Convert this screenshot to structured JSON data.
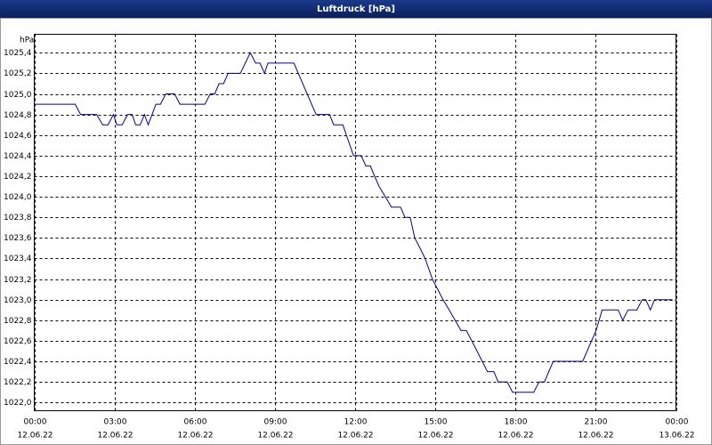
{
  "chart_data": {
    "type": "line",
    "title": "Luftdruck [hPa]",
    "y_unit": "hPa",
    "x": [
      0,
      1.53,
      1.73,
      2.33,
      2.56,
      2.76,
      2.96,
      3.09,
      3.29,
      3.49,
      3.66,
      3.79,
      3.96,
      4.12,
      4.26,
      4.55,
      4.72,
      4.92,
      5.25,
      5.45,
      6.38,
      6.58,
      6.75,
      6.91,
      7.08,
      7.25,
      7.71,
      8.08,
      8.28,
      8.44,
      8.61,
      8.74,
      9.71,
      10.54,
      11.04,
      11.2,
      11.54,
      11.94,
      12.23,
      12.4,
      12.57,
      12.73,
      12.9,
      13.36,
      13.7,
      13.86,
      14.06,
      14.23,
      14.43,
      14.62,
      14.89,
      15.09,
      15.29,
      15.52,
      15.96,
      16.16,
      16.36,
      16.56,
      16.95,
      17.19,
      17.35,
      17.69,
      17.89,
      18.68,
      18.88,
      19.08,
      19.41,
      20.51,
      21.01,
      21.24,
      21.84,
      22.01,
      22.21,
      22.54,
      22.74,
      22.87,
      23.04,
      23.2,
      23.87
    ],
    "series": [
      {
        "name": "Luftdruck",
        "color": "#0000a0",
        "values": [
          1024.9,
          1024.9,
          1024.8,
          1024.8,
          1024.7,
          1024.7,
          1024.8,
          1024.7,
          1024.7,
          1024.8,
          1024.8,
          1024.7,
          1024.7,
          1024.8,
          1024.7,
          1024.9,
          1024.9,
          1025.0,
          1025.0,
          1024.9,
          1024.9,
          1025.0,
          1025.0,
          1025.1,
          1025.1,
          1025.2,
          1025.2,
          1025.4,
          1025.3,
          1025.3,
          1025.2,
          1025.3,
          1025.3,
          1024.8,
          1024.8,
          1024.7,
          1024.7,
          1024.4,
          1024.4,
          1024.3,
          1024.3,
          1024.2,
          1024.1,
          1023.9,
          1023.9,
          1023.8,
          1023.8,
          1023.6,
          1023.5,
          1023.4,
          1023.2,
          1023.1,
          1023.0,
          1022.9,
          1022.7,
          1022.7,
          1022.6,
          1022.5,
          1022.3,
          1022.3,
          1022.2,
          1022.2,
          1022.1,
          1022.1,
          1022.2,
          1022.2,
          1022.4,
          1022.4,
          1022.7,
          1022.9,
          1022.9,
          1022.8,
          1022.9,
          1022.9,
          1023.0,
          1023.0,
          1022.9,
          1023.0,
          1023.0
        ]
      }
    ],
    "xlim": [
      0,
      24
    ],
    "xticks": [
      {
        "value": 0,
        "label": "00:00",
        "date": "12.06.22"
      },
      {
        "value": 3,
        "label": "03:00",
        "date": "12.06.22"
      },
      {
        "value": 6,
        "label": "06:00",
        "date": "12.06.22"
      },
      {
        "value": 9,
        "label": "09:00",
        "date": "12.06.22"
      },
      {
        "value": 12,
        "label": "12:00",
        "date": "12.06.22"
      },
      {
        "value": 15,
        "label": "15:00",
        "date": "12.06.22"
      },
      {
        "value": 18,
        "label": "18:00",
        "date": "12.06.22"
      },
      {
        "value": 21,
        "label": "21:00",
        "date": "12.06.22"
      },
      {
        "value": 24,
        "label": "00:00",
        "date": "13.06.22"
      }
    ],
    "ylim": [
      1021.92,
      1025.58
    ],
    "yticks": [
      {
        "value": 1022.0,
        "label": "1022,0"
      },
      {
        "value": 1022.2,
        "label": "1022,2"
      },
      {
        "value": 1022.4,
        "label": "1022,4"
      },
      {
        "value": 1022.6,
        "label": "1022,6"
      },
      {
        "value": 1022.8,
        "label": "1022,8"
      },
      {
        "value": 1023.0,
        "label": "1023,0"
      },
      {
        "value": 1023.2,
        "label": "1023,2"
      },
      {
        "value": 1023.4,
        "label": "1023,4"
      },
      {
        "value": 1023.6,
        "label": "1023,6"
      },
      {
        "value": 1023.8,
        "label": "1023,8"
      },
      {
        "value": 1024.0,
        "label": "1024,0"
      },
      {
        "value": 1024.2,
        "label": "1024,2"
      },
      {
        "value": 1024.4,
        "label": "1024,4"
      },
      {
        "value": 1024.6,
        "label": "1024,6"
      },
      {
        "value": 1024.8,
        "label": "1024,8"
      },
      {
        "value": 1025.0,
        "label": "1025,0"
      },
      {
        "value": 1025.2,
        "label": "1025,2"
      },
      {
        "value": 1025.4,
        "label": "1025,4"
      }
    ],
    "grid": true
  }
}
